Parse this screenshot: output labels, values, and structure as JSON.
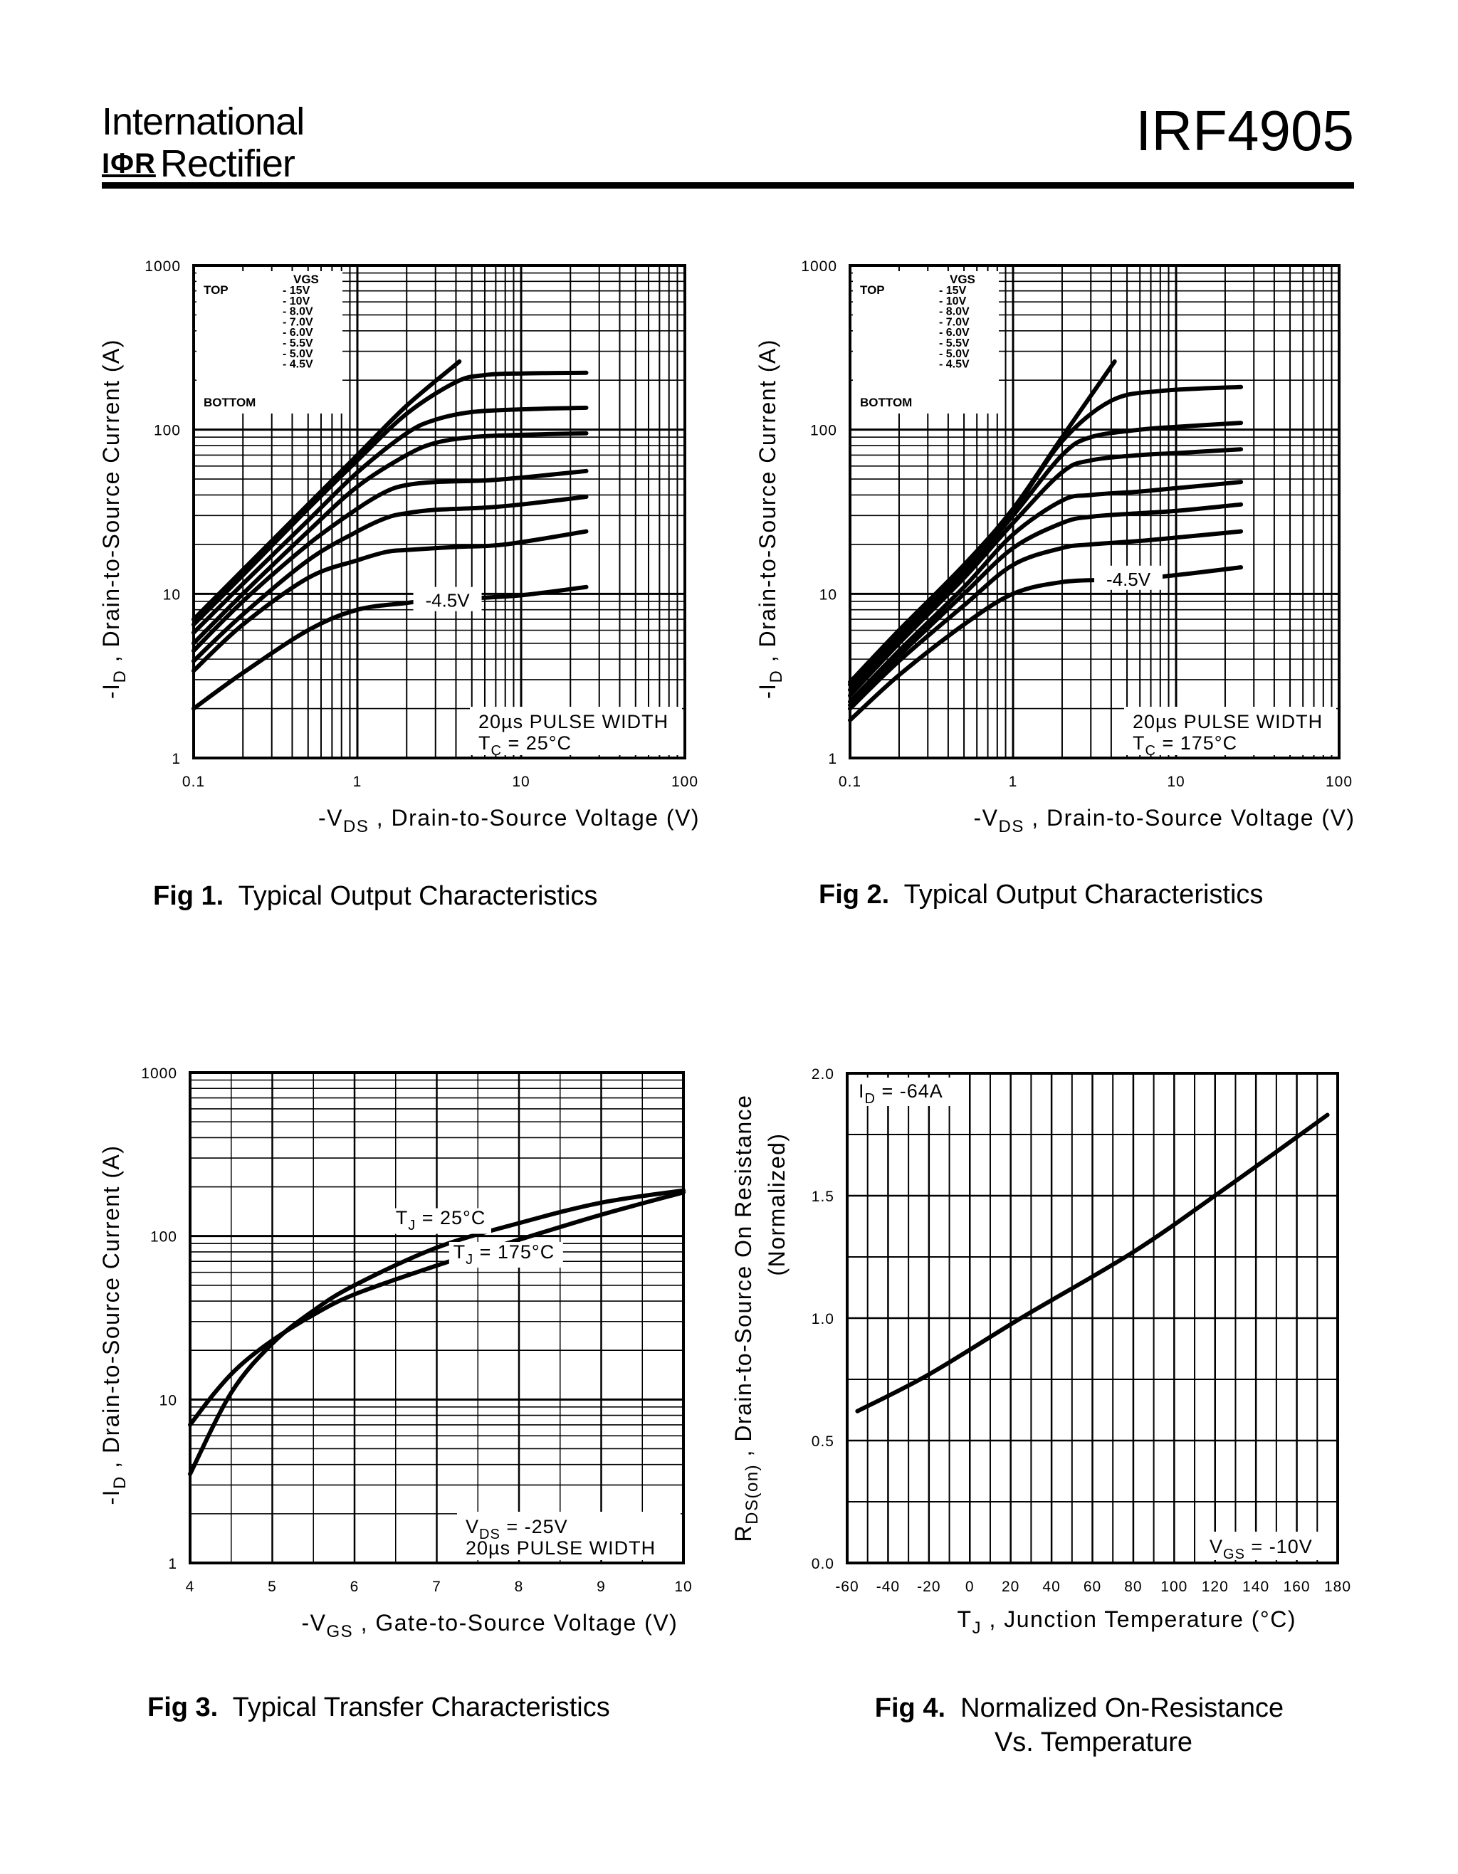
{
  "header": {
    "company_line1": "International",
    "logo": "IΦR",
    "company_line2": "Rectifier",
    "part_number": "IRF4905"
  },
  "captions": {
    "fig1_prefix": "Fig 1.",
    "fig1_text": "Typical Output Characteristics",
    "fig2_prefix": "Fig 2.",
    "fig2_text": "Typical Output Characteristics",
    "fig3_prefix": "Fig 3.",
    "fig3_text": "Typical Transfer Characteristics",
    "fig4_prefix": "Fig 4.",
    "fig4_text": "Normalized On-Resistance",
    "fig4_text2": "Vs. Temperature"
  },
  "chart_data": [
    {
      "id": "fig1",
      "type": "line",
      "xscale": "log",
      "yscale": "log",
      "xlim": [
        0.1,
        100
      ],
      "ylim": [
        1,
        1000
      ],
      "xticks": [
        "0.1",
        "1",
        "10",
        "100"
      ],
      "yticks": [
        "1",
        "10",
        "100",
        "1000"
      ],
      "xlabel_prefix": "-V",
      "xlabel_sub": "DS",
      "xlabel_rest": " , Drain-to-Source Voltage (V)",
      "ylabel_prefix": "-I",
      "ylabel_sub": "D",
      "ylabel_rest": " , Drain-to-Source Current (A)",
      "legend_header": "VGS",
      "legend_top": "TOP",
      "legend_bottom": "BOTTOM",
      "legend_entries": [
        "- 15V",
        "- 10V",
        "- 8.0V",
        "- 7.0V",
        "- 6.0V",
        "- 5.5V",
        "- 5.0V",
        "- 4.5V"
      ],
      "curve_label": "-4.5V",
      "box_line1": "20µs PULSE WIDTH",
      "box_line2_prefix": "T",
      "box_line2_sub": "C",
      "box_line2_rest": " = 25°C",
      "series": [
        {
          "name": "-15V",
          "x": [
            0.1,
            0.2,
            0.5,
            1,
            2,
            4.2
          ],
          "y": [
            7,
            14,
            35,
            70,
            140,
            260
          ]
        },
        {
          "name": "-10V",
          "x": [
            0.1,
            0.2,
            0.5,
            1,
            2,
            4,
            6,
            10,
            25
          ],
          "y": [
            6.5,
            13,
            33,
            65,
            125,
            195,
            215,
            220,
            222
          ]
        },
        {
          "name": "-8.0V",
          "x": [
            0.1,
            0.2,
            0.5,
            1,
            2,
            3,
            5,
            10,
            25
          ],
          "y": [
            5.8,
            11.5,
            28,
            55,
            95,
            115,
            128,
            133,
            136
          ]
        },
        {
          "name": "-7.0V",
          "x": [
            0.1,
            0.2,
            0.5,
            1,
            2,
            3,
            5,
            10,
            25
          ],
          "y": [
            5,
            10,
            24,
            45,
            70,
            83,
            90,
            93,
            95
          ]
        },
        {
          "name": "-6.0V",
          "x": [
            0.1,
            0.2,
            0.5,
            1,
            1.5,
            2,
            3,
            6,
            10,
            25
          ],
          "y": [
            4.5,
            9,
            20,
            33,
            42,
            46,
            48,
            49,
            51,
            56
          ]
        },
        {
          "name": "-5.5V",
          "x": [
            0.1,
            0.2,
            0.5,
            1,
            1.5,
            2,
            3,
            6,
            10,
            25
          ],
          "y": [
            3.9,
            7.5,
            16,
            24,
            29,
            31,
            32.5,
            33.5,
            35,
            39
          ]
        },
        {
          "name": "-5.0V",
          "x": [
            0.1,
            0.2,
            0.5,
            1,
            1.5,
            2,
            4,
            8,
            25
          ],
          "y": [
            3.4,
            6.5,
            12.5,
            16,
            18,
            18.5,
            19.3,
            20,
            24
          ]
        },
        {
          "name": "-4.5V",
          "x": [
            0.1,
            0.2,
            0.5,
            1,
            2,
            3,
            5,
            10,
            25
          ],
          "y": [
            2,
            3.3,
            6,
            8,
            8.8,
            9.2,
            9.4,
            9.8,
            11
          ]
        }
      ]
    },
    {
      "id": "fig2",
      "type": "line",
      "xscale": "log",
      "yscale": "log",
      "xlim": [
        0.1,
        100
      ],
      "ylim": [
        1,
        1000
      ],
      "xticks": [
        "0.1",
        "1",
        "10",
        "100"
      ],
      "yticks": [
        "1",
        "10",
        "100",
        "1000"
      ],
      "xlabel_prefix": "-V",
      "xlabel_sub": "DS",
      "xlabel_rest": " , Drain-to-Source Voltage (V)",
      "ylabel_prefix": "-I",
      "ylabel_sub": "D",
      "ylabel_rest": " , Drain-to-Source Current (A)",
      "legend_header": "VGS",
      "legend_top": "TOP",
      "legend_bottom": "BOTTOM",
      "legend_entries": [
        "- 15V",
        "- 10V",
        "- 8.0V",
        "- 7.0V",
        "- 6.0V",
        "- 5.5V",
        "- 5.0V",
        "- 4.5V"
      ],
      "curve_label": "-4.5V",
      "box_line1": "20µs PULSE WIDTH",
      "box_line2_prefix": "T",
      "box_line2_sub": "C",
      "box_line2_rest": " = 175°C",
      "series": [
        {
          "name": "-15V",
          "x": [
            0.1,
            0.2,
            0.5,
            1,
            2,
            4.2
          ],
          "y": [
            2.9,
            6,
            15,
            33,
            90,
            260
          ]
        },
        {
          "name": "-10V",
          "x": [
            0.1,
            0.2,
            0.5,
            1,
            2,
            4,
            8,
            25
          ],
          "y": [
            2.8,
            5.8,
            14.5,
            32,
            85,
            150,
            172,
            182
          ]
        },
        {
          "name": "-8.0V",
          "x": [
            0.1,
            0.2,
            0.5,
            1,
            2,
            3,
            6,
            10,
            25
          ],
          "y": [
            2.6,
            5.4,
            13.5,
            30,
            70,
            90,
            100,
            104,
            110
          ]
        },
        {
          "name": "-7.0V",
          "x": [
            0.1,
            0.2,
            0.5,
            1,
            2,
            3,
            6,
            10,
            25
          ],
          "y": [
            2.4,
            5,
            12.5,
            27,
            55,
            65,
            70,
            72,
            76
          ]
        },
        {
          "name": "-6.0V",
          "x": [
            0.1,
            0.2,
            0.5,
            1,
            2,
            3,
            6,
            10,
            25
          ],
          "y": [
            2.2,
            4.5,
            11,
            23,
            37,
            40,
            42,
            44,
            48
          ]
        },
        {
          "name": "-5.5V",
          "x": [
            0.1,
            0.2,
            0.5,
            1,
            2,
            3,
            6,
            10,
            25
          ],
          "y": [
            2.1,
            4.2,
            10,
            19,
            27,
            29.5,
            31,
            32,
            35
          ]
        },
        {
          "name": "-5.0V",
          "x": [
            0.1,
            0.2,
            0.5,
            1,
            2,
            3,
            6,
            10,
            25
          ],
          "y": [
            2,
            3.9,
            8.5,
            15,
            19,
            20,
            21,
            22,
            24
          ]
        },
        {
          "name": "-4.5V",
          "x": [
            0.1,
            0.2,
            0.5,
            1,
            2,
            4,
            8,
            25
          ],
          "y": [
            1.7,
            3.2,
            6.5,
            10,
            11.8,
            12.2,
            12.7,
            14.5
          ]
        }
      ]
    },
    {
      "id": "fig3",
      "type": "line",
      "xscale": "linear",
      "yscale": "log",
      "xlim": [
        4,
        10
      ],
      "ylim": [
        1,
        1000
      ],
      "xticks": [
        "4",
        "5",
        "6",
        "7",
        "8",
        "9",
        "10"
      ],
      "yticks": [
        "1",
        "10",
        "100",
        "1000"
      ],
      "xlabel_prefix": "-V",
      "xlabel_sub": "GS",
      "xlabel_rest": " , Gate-to-Source Voltage (V)",
      "ylabel_prefix": "-I",
      "ylabel_sub": "D",
      "ylabel_rest": " , Drain-to-Source Current (A)",
      "label_25_prefix": "T",
      "label_25_sub": "J",
      "label_25_rest": " = 25°C",
      "label_175_prefix": "T",
      "label_175_sub": "J",
      "label_175_rest": " = 175°C",
      "box_line1_prefix": "V",
      "box_line1_sub": "DS",
      "box_line1_rest": " = -25V",
      "box_line2": "20µs PULSE WIDTH",
      "series": [
        {
          "name": "TJ = 25°C",
          "x": [
            4,
            4.5,
            5,
            5.5,
            6,
            7,
            8,
            9,
            10
          ],
          "y": [
            3.5,
            11,
            22,
            35,
            50,
            85,
            120,
            160,
            190
          ]
        },
        {
          "name": "TJ = 175°C",
          "x": [
            4,
            4.3,
            4.6,
            5,
            5.5,
            6,
            7,
            8,
            9,
            10
          ],
          "y": [
            7,
            11,
            16,
            23,
            33,
            44,
            66,
            95,
            135,
            185
          ]
        }
      ]
    },
    {
      "id": "fig4",
      "type": "line",
      "xscale": "linear",
      "yscale": "linear",
      "xlim": [
        -60,
        180
      ],
      "ylim": [
        0,
        2
      ],
      "xticks": [
        "-60",
        "-40",
        "-20",
        "0",
        "20",
        "40",
        "60",
        "80",
        "100",
        "120",
        "140",
        "160",
        "180"
      ],
      "yticks": [
        "0.0",
        "0.5",
        "1.0",
        "1.5",
        "2.0"
      ],
      "xlabel_prefix": "T",
      "xlabel_sub": "J",
      "xlabel_rest": " , Junction Temperature (°C)",
      "ylabel_prefix": "R",
      "ylabel_sub": "DS(on)",
      "ylabel_rest": " , Drain-to-Source On Resistance",
      "ylabel_line2": "(Normalized)",
      "id_label_prefix": "I",
      "id_label_sub": "D",
      "id_label_rest": " = -64A",
      "vgs_label_prefix": "V",
      "vgs_label_sub": "GS",
      "vgs_label_rest": " = -10V",
      "series": [
        {
          "name": "RDS(on)",
          "x": [
            -55,
            -20,
            25,
            80,
            125,
            175
          ],
          "y": [
            0.62,
            0.77,
            1.0,
            1.27,
            1.53,
            1.83
          ]
        }
      ]
    }
  ]
}
